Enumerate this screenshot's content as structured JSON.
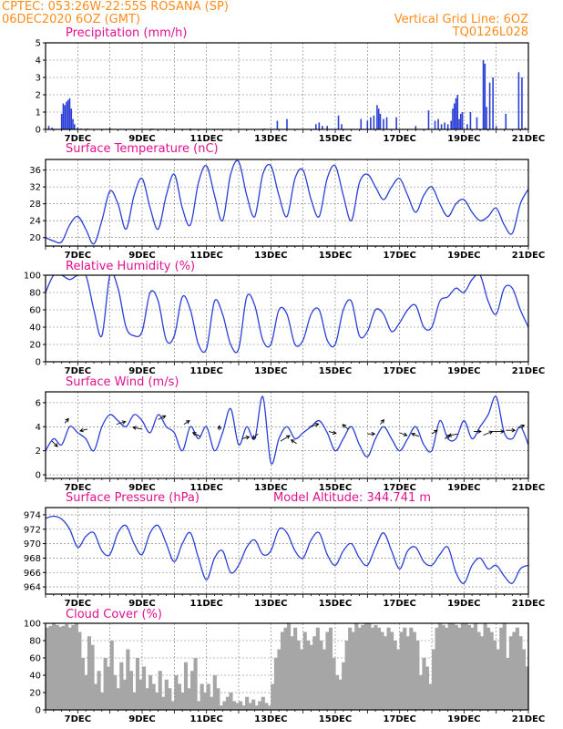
{
  "header": {
    "line1_left": "CPTEC:   053:26W-22:55S   ROSANA (SP)",
    "line2_left": "06DEC2020 6OZ (GMT)",
    "line1_right": "Vertical Grid Line: 6OZ",
    "line2_right": "TQ0126L028"
  },
  "colors": {
    "header": "#ff8c1a",
    "title": "#e0118f",
    "series": "#2b3fd6",
    "cloud": "#a6a6a6"
  },
  "x_axis": {
    "start_day": 6,
    "end_day": 21,
    "tick_labels": [
      "7DEC",
      "9DEC",
      "11DEC",
      "13DEC",
      "15DEC",
      "17DEC",
      "19DEC",
      "21DEC"
    ],
    "tick_days": [
      7,
      9,
      11,
      13,
      15,
      17,
      19,
      21
    ]
  },
  "chart_data": [
    {
      "id": "precipitation",
      "type": "bar",
      "title": "Precipitation (mm/h)",
      "ylim": [
        0,
        5
      ],
      "yticks": [
        0,
        1,
        2,
        3,
        4,
        5
      ],
      "x": [
        6.1,
        6.2,
        6.5,
        6.55,
        6.6,
        6.65,
        6.7,
        6.75,
        6.8,
        6.85,
        6.9,
        7.0,
        7.1,
        7.3,
        8.0,
        9.3,
        10.5,
        12.8,
        13.2,
        13.5,
        14.4,
        14.5,
        14.6,
        14.75,
        15.1,
        15.2,
        15.8,
        16.0,
        16.1,
        16.2,
        16.3,
        16.35,
        16.4,
        16.5,
        16.6,
        16.9,
        17.5,
        17.9,
        18.1,
        18.2,
        18.3,
        18.4,
        18.5,
        18.6,
        18.65,
        18.7,
        18.75,
        18.8,
        18.85,
        18.9,
        18.95,
        19.1,
        19.2,
        19.4,
        19.6,
        19.65,
        19.7,
        19.8,
        19.9,
        20.0,
        20.3,
        20.7,
        20.8,
        20.9
      ],
      "values": [
        0.2,
        0.1,
        0.9,
        1.5,
        1.4,
        1.6,
        1.7,
        1.8,
        1.2,
        0.6,
        0.3,
        0.1,
        0.05,
        0.05,
        0.1,
        0.05,
        0.05,
        0.05,
        0.5,
        0.6,
        0.3,
        0.4,
        0.2,
        0.2,
        0.8,
        0.3,
        0.6,
        0.5,
        0.7,
        0.8,
        1.4,
        1.2,
        0.9,
        0.6,
        0.7,
        0.7,
        0.2,
        1.1,
        0.5,
        0.6,
        0.3,
        0.4,
        0.3,
        0.5,
        1.2,
        1.5,
        1.8,
        2.0,
        0.6,
        0.9,
        1.0,
        0.3,
        1.0,
        0.7,
        4.0,
        3.8,
        1.3,
        2.7,
        3.0,
        0.2,
        0.9,
        3.3,
        3.0,
        0.1
      ]
    },
    {
      "id": "temperature",
      "type": "line",
      "title": "Surface Temperature (nC)",
      "ylim": [
        18,
        38.5
      ],
      "yticks": [
        20,
        24,
        28,
        32,
        36
      ],
      "x": [
        6.0,
        6.25,
        6.5,
        6.75,
        7.0,
        7.25,
        7.5,
        7.75,
        8.0,
        8.25,
        8.5,
        8.75,
        9.0,
        9.25,
        9.5,
        9.75,
        10.0,
        10.25,
        10.5,
        10.75,
        11.0,
        11.25,
        11.5,
        11.75,
        12.0,
        12.25,
        12.5,
        12.75,
        13.0,
        13.25,
        13.5,
        13.75,
        14.0,
        14.25,
        14.5,
        14.75,
        15.0,
        15.25,
        15.5,
        15.75,
        16.0,
        16.25,
        16.5,
        16.75,
        17.0,
        17.25,
        17.5,
        17.75,
        18.0,
        18.25,
        18.5,
        18.75,
        19.0,
        19.25,
        19.5,
        19.75,
        20.0,
        20.25,
        20.5,
        20.75,
        21.0
      ],
      "values": [
        20,
        19.2,
        19,
        23,
        25,
        22,
        18.5,
        24,
        31,
        28,
        22,
        30,
        34,
        27,
        22,
        30,
        35,
        27,
        23,
        33,
        37,
        30,
        24,
        35,
        38,
        30,
        25,
        35,
        37,
        30,
        25,
        34,
        36,
        29,
        25,
        34,
        37,
        30,
        24,
        33,
        35,
        32,
        29,
        32,
        34,
        30,
        26,
        30,
        32,
        28,
        25,
        28,
        29,
        26,
        24,
        25,
        27,
        23,
        21,
        28,
        31.5
      ]
    },
    {
      "id": "humidity",
      "type": "line",
      "title": "Relative Humidity (%)",
      "ylim": [
        0,
        100
      ],
      "yticks": [
        0,
        20,
        40,
        60,
        80,
        100
      ],
      "x": [
        6.0,
        6.25,
        6.5,
        6.75,
        7.0,
        7.25,
        7.5,
        7.75,
        8.0,
        8.25,
        8.5,
        8.75,
        9.0,
        9.25,
        9.5,
        9.75,
        10.0,
        10.25,
        10.5,
        10.75,
        11.0,
        11.25,
        11.5,
        11.75,
        12.0,
        12.25,
        12.5,
        12.75,
        13.0,
        13.25,
        13.5,
        13.75,
        14.0,
        14.25,
        14.5,
        14.75,
        15.0,
        15.25,
        15.5,
        15.75,
        16.0,
        16.25,
        16.5,
        16.75,
        17.0,
        17.25,
        17.5,
        17.75,
        18.0,
        18.25,
        18.5,
        18.75,
        19.0,
        19.25,
        19.5,
        19.75,
        20.0,
        20.25,
        20.5,
        20.75,
        21.0
      ],
      "values": [
        80,
        100,
        100,
        95,
        100,
        100,
        60,
        30,
        100,
        85,
        40,
        30,
        35,
        80,
        70,
        25,
        30,
        75,
        60,
        20,
        15,
        70,
        55,
        20,
        15,
        75,
        65,
        25,
        20,
        60,
        55,
        20,
        25,
        55,
        60,
        25,
        20,
        60,
        70,
        30,
        35,
        60,
        55,
        35,
        45,
        60,
        65,
        40,
        40,
        70,
        75,
        85,
        80,
        95,
        100,
        70,
        55,
        85,
        85,
        60,
        40
      ]
    },
    {
      "id": "wind",
      "type": "line",
      "title": "Surface Wind (m/s)",
      "ylim": [
        -0.3,
        6.9
      ],
      "yticks": [
        0,
        2,
        4,
        6
      ],
      "x": [
        6.0,
        6.25,
        6.5,
        6.75,
        7.0,
        7.25,
        7.5,
        7.75,
        8.0,
        8.25,
        8.5,
        8.75,
        9.0,
        9.25,
        9.5,
        9.75,
        10.0,
        10.25,
        10.5,
        10.75,
        11.0,
        11.25,
        11.5,
        11.75,
        12.0,
        12.25,
        12.5,
        12.75,
        13.0,
        13.25,
        13.5,
        13.75,
        14.0,
        14.25,
        14.5,
        14.75,
        15.0,
        15.25,
        15.5,
        15.75,
        16.0,
        16.25,
        16.5,
        16.75,
        17.0,
        17.25,
        17.5,
        17.75,
        18.0,
        18.25,
        18.5,
        18.75,
        19.0,
        19.25,
        19.5,
        19.75,
        20.0,
        20.25,
        20.5,
        20.75,
        21.0
      ],
      "values": [
        2,
        3,
        2.5,
        4,
        3.5,
        3,
        2,
        4,
        5,
        4.5,
        4,
        5,
        4.5,
        3.5,
        5,
        4,
        3.5,
        2,
        4,
        3,
        4,
        2,
        3.5,
        5.5,
        2.5,
        4,
        3,
        6.5,
        1,
        3,
        4,
        3,
        3.5,
        4,
        4.5,
        3.5,
        2,
        3,
        4,
        2.5,
        1.5,
        3,
        4,
        3,
        2,
        3,
        4,
        2.5,
        2,
        4.5,
        3,
        3,
        4.5,
        3,
        4,
        5,
        6.5,
        3.5,
        3,
        4,
        2.5
      ],
      "arrows": [
        {
          "x": 6.2,
          "y": 2.8,
          "dx": 0.3,
          "dy": -0.6
        },
        {
          "x": 6.6,
          "y": 4.3,
          "dx": 0.2,
          "dy": 0.5
        },
        {
          "x": 7.3,
          "y": 3.8,
          "dx": -0.4,
          "dy": -0.2
        },
        {
          "x": 8.2,
          "y": 4.2,
          "dx": 0.5,
          "dy": 0.3
        },
        {
          "x": 9.0,
          "y": 3.8,
          "dx": -0.5,
          "dy": 0.2
        },
        {
          "x": 9.5,
          "y": 4.6,
          "dx": 0.4,
          "dy": 0.4
        },
        {
          "x": 10.3,
          "y": 4.2,
          "dx": 0.3,
          "dy": 0.4
        },
        {
          "x": 10.8,
          "y": 3.2,
          "dx": -0.4,
          "dy": 0.4
        },
        {
          "x": 11.4,
          "y": 3.7,
          "dx": 0.0,
          "dy": 0.5
        },
        {
          "x": 12.1,
          "y": 3.0,
          "dx": 0.4,
          "dy": 0.2
        },
        {
          "x": 12.6,
          "y": 3.4,
          "dx": -0.3,
          "dy": -0.5
        },
        {
          "x": 13.3,
          "y": 2.8,
          "dx": 0.5,
          "dy": 0.6
        },
        {
          "x": 13.8,
          "y": 2.6,
          "dx": -0.3,
          "dy": 0.4
        },
        {
          "x": 14.2,
          "y": 4.0,
          "dx": 0.5,
          "dy": 0.3
        },
        {
          "x": 14.8,
          "y": 3.6,
          "dx": 0.4,
          "dy": -0.2
        },
        {
          "x": 15.4,
          "y": 3.8,
          "dx": -0.3,
          "dy": 0.5
        },
        {
          "x": 16.0,
          "y": 3.4,
          "dx": 0.4,
          "dy": 0.0
        },
        {
          "x": 16.4,
          "y": 4.2,
          "dx": 0.2,
          "dy": 0.5
        },
        {
          "x": 17.0,
          "y": 3.5,
          "dx": 0.4,
          "dy": -0.3
        },
        {
          "x": 17.6,
          "y": 3.2,
          "dx": -0.4,
          "dy": 0.3
        },
        {
          "x": 18.0,
          "y": 3.4,
          "dx": 0.3,
          "dy": 0.4
        },
        {
          "x": 18.4,
          "y": 3.0,
          "dx": 0.3,
          "dy": 0.4
        },
        {
          "x": 18.8,
          "y": 3.4,
          "dx": -0.5,
          "dy": -0.2
        },
        {
          "x": 19.3,
          "y": 3.6,
          "dx": 0.4,
          "dy": 0.0
        },
        {
          "x": 19.6,
          "y": 3.3,
          "dx": 0.5,
          "dy": 0.4
        },
        {
          "x": 19.9,
          "y": 3.6,
          "dx": 0.6,
          "dy": 0.0
        },
        {
          "x": 20.3,
          "y": 3.7,
          "dx": 0.5,
          "dy": 0.0
        },
        {
          "x": 20.7,
          "y": 3.9,
          "dx": 0.3,
          "dy": 0.3
        }
      ]
    },
    {
      "id": "pressure",
      "type": "line",
      "title": "Surface Pressure (hPa)",
      "extra_label": "Model Altitude: 344.741  m",
      "ylim": [
        963,
        975
      ],
      "yticks": [
        964,
        966,
        968,
        970,
        972,
        974
      ],
      "x": [
        6.0,
        6.25,
        6.5,
        6.75,
        7.0,
        7.25,
        7.5,
        7.75,
        8.0,
        8.25,
        8.5,
        8.75,
        9.0,
        9.25,
        9.5,
        9.75,
        10.0,
        10.25,
        10.5,
        10.75,
        11.0,
        11.25,
        11.5,
        11.75,
        12.0,
        12.25,
        12.5,
        12.75,
        13.0,
        13.25,
        13.5,
        13.75,
        14.0,
        14.25,
        14.5,
        14.75,
        15.0,
        15.25,
        15.5,
        15.75,
        16.0,
        16.25,
        16.5,
        16.75,
        17.0,
        17.25,
        17.5,
        17.75,
        18.0,
        18.25,
        18.5,
        18.75,
        19.0,
        19.25,
        19.5,
        19.75,
        20.0,
        20.25,
        20.5,
        20.75,
        21.0
      ],
      "values": [
        973.5,
        973.8,
        973.4,
        972,
        969.5,
        971,
        971.5,
        969,
        968.5,
        971.5,
        972.5,
        970,
        968.5,
        971.5,
        972.5,
        970,
        967.5,
        970,
        971.5,
        968,
        965,
        968,
        969,
        966,
        967,
        969.5,
        970.5,
        968.5,
        969,
        972,
        971.5,
        969,
        968,
        970.5,
        971.5,
        968.5,
        967,
        969,
        970,
        968,
        967,
        969.5,
        971.5,
        969,
        966.5,
        969,
        969.5,
        967.5,
        967,
        968.5,
        969.5,
        966,
        964.5,
        967,
        968,
        966.5,
        967,
        965.5,
        964.5,
        966.5,
        967
      ]
    },
    {
      "id": "cloud_cover",
      "type": "bar",
      "title": "Cloud Cover (%)",
      "ylim": [
        0,
        100
      ],
      "yticks": [
        0,
        20,
        40,
        60,
        80,
        100
      ],
      "x": [
        6.0,
        6.1,
        6.2,
        6.3,
        6.4,
        6.5,
        6.6,
        6.7,
        6.8,
        6.9,
        7.0,
        7.1,
        7.2,
        7.3,
        7.4,
        7.5,
        7.6,
        7.7,
        7.8,
        7.9,
        8.0,
        8.1,
        8.2,
        8.3,
        8.4,
        8.5,
        8.6,
        8.7,
        8.8,
        8.9,
        9.0,
        9.1,
        9.2,
        9.3,
        9.4,
        9.5,
        9.6,
        9.7,
        9.8,
        9.9,
        10.0,
        10.1,
        10.2,
        10.3,
        10.4,
        10.5,
        10.6,
        10.7,
        10.8,
        10.9,
        11.0,
        11.1,
        11.2,
        11.3,
        11.4,
        11.5,
        11.6,
        11.7,
        11.8,
        11.9,
        12.0,
        12.1,
        12.2,
        12.3,
        12.4,
        12.5,
        12.6,
        12.7,
        12.8,
        12.9,
        13.0,
        13.1,
        13.2,
        13.3,
        13.4,
        13.5,
        13.6,
        13.7,
        13.8,
        13.9,
        14.0,
        14.1,
        14.2,
        14.3,
        14.4,
        14.5,
        14.6,
        14.7,
        14.8,
        14.9,
        15.0,
        15.1,
        15.2,
        15.3,
        15.4,
        15.5,
        15.6,
        15.7,
        15.8,
        15.9,
        16.0,
        16.1,
        16.2,
        16.3,
        16.4,
        16.5,
        16.6,
        16.7,
        16.8,
        16.9,
        17.0,
        17.1,
        17.2,
        17.3,
        17.4,
        17.5,
        17.6,
        17.7,
        17.8,
        17.9,
        18.0,
        18.1,
        18.2,
        18.3,
        18.4,
        18.5,
        18.6,
        18.7,
        18.8,
        18.9,
        19.0,
        19.1,
        19.2,
        19.3,
        19.4,
        19.5,
        19.6,
        19.7,
        19.8,
        19.9,
        20.0,
        20.1,
        20.2,
        20.3,
        20.4,
        20.5,
        20.6,
        20.7,
        20.8,
        20.9
      ],
      "values": [
        95,
        97,
        100,
        98,
        96,
        97,
        99,
        95,
        98,
        100,
        90,
        60,
        40,
        85,
        75,
        30,
        45,
        20,
        60,
        50,
        80,
        40,
        25,
        55,
        35,
        70,
        45,
        20,
        60,
        35,
        50,
        25,
        40,
        30,
        20,
        45,
        15,
        35,
        25,
        10,
        40,
        30,
        20,
        55,
        25,
        45,
        60,
        10,
        30,
        20,
        30,
        15,
        40,
        25,
        5,
        10,
        15,
        20,
        10,
        8,
        10,
        5,
        15,
        8,
        12,
        5,
        10,
        15,
        8,
        5,
        30,
        60,
        70,
        90,
        95,
        100,
        85,
        95,
        80,
        70,
        90,
        80,
        75,
        85,
        95,
        80,
        70,
        90,
        95,
        60,
        40,
        35,
        55,
        80,
        95,
        90,
        100,
        95,
        98,
        100,
        100,
        95,
        98,
        95,
        90,
        85,
        95,
        90,
        80,
        70,
        90,
        95,
        85,
        95,
        90,
        80,
        40,
        60,
        50,
        30,
        70,
        95,
        100,
        98,
        95,
        100,
        100,
        98,
        95,
        100,
        100,
        98,
        95,
        100,
        90,
        85,
        100,
        95,
        90,
        80,
        70,
        95,
        100,
        60,
        85,
        90,
        95,
        85,
        70,
        50
      ]
    }
  ]
}
